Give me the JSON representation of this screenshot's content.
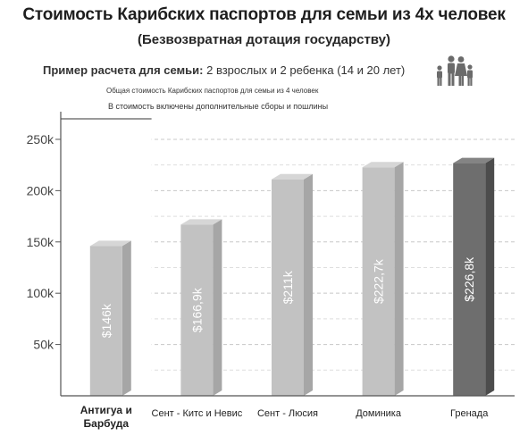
{
  "header": {
    "title": "Стоимость Карибских паспортов для семьи из 4х человек",
    "subtitle": "(Безвозвратная дотация государству)",
    "example_label": "Пример расчета для семьи:",
    "example_value": "2 взрослых и 2 ребенка (14 и 20 лет)",
    "note_total": "Общая стоимость Карибских паспортов для семьи из 4 человек",
    "note_fees": "В стоимость включены дополнительные сборы и пошлины",
    "icon": "family-icon"
  },
  "chart_data": {
    "type": "bar",
    "categories": [
      "Антигуа и Барбуда",
      "Сент - Китс и Невис",
      "Сент - Люсия",
      "Доминика",
      "Гренада"
    ],
    "values": [
      146,
      166.9,
      211,
      222.7,
      226.8
    ],
    "data_labels": [
      "$146k",
      "$166,9k",
      "$211k",
      "$222,7k",
      "$226,8k"
    ],
    "yticks": [
      50,
      100,
      150,
      200,
      250
    ],
    "ytick_labels": [
      "50k",
      "100k",
      "150k",
      "200k",
      "250k"
    ],
    "ylim": [
      0,
      270
    ],
    "grid": true,
    "highlighted_category": 0,
    "highlighted_bar": 4,
    "colors": {
      "bar": "#c2c2c2",
      "bar_side": "#a6a6a6",
      "bar_top": "#d6d6d6",
      "bar_highlight": "#6e6e6e",
      "bar_highlight_side": "#4c4c4c",
      "bar_highlight_top": "#848484",
      "grid": "#c8c8c8",
      "axis": "#555555"
    }
  }
}
